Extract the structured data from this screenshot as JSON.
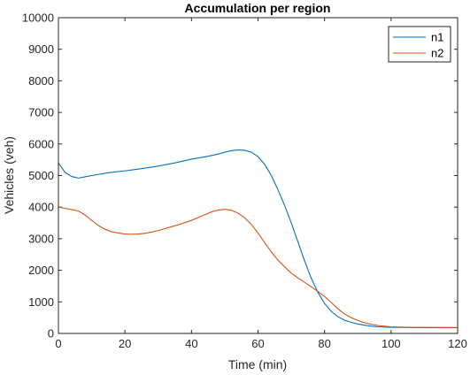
{
  "chart_data": {
    "type": "line",
    "title": "Accumulation per region",
    "xlabel": "Time (min)",
    "ylabel": "Vehicles (veh)",
    "xlim": [
      0,
      120
    ],
    "ylim": [
      0,
      10000
    ],
    "xticks": [
      0,
      20,
      40,
      60,
      80,
      100,
      120
    ],
    "yticks": [
      0,
      1000,
      2000,
      3000,
      4000,
      5000,
      6000,
      7000,
      8000,
      9000,
      10000
    ],
    "grid": false,
    "legend_position": "top-right",
    "series": [
      {
        "name": "n1",
        "color": "#0072BD",
        "points": [
          [
            0,
            5400
          ],
          [
            1,
            5250
          ],
          [
            2,
            5100
          ],
          [
            4,
            4970
          ],
          [
            6,
            4920
          ],
          [
            8,
            4960
          ],
          [
            10,
            5000
          ],
          [
            15,
            5090
          ],
          [
            20,
            5150
          ],
          [
            25,
            5220
          ],
          [
            30,
            5300
          ],
          [
            35,
            5400
          ],
          [
            40,
            5520
          ],
          [
            45,
            5610
          ],
          [
            48,
            5680
          ],
          [
            50,
            5740
          ],
          [
            52,
            5790
          ],
          [
            54,
            5810
          ],
          [
            56,
            5800
          ],
          [
            58,
            5740
          ],
          [
            60,
            5600
          ],
          [
            62,
            5350
          ],
          [
            64,
            5000
          ],
          [
            66,
            4550
          ],
          [
            68,
            4050
          ],
          [
            70,
            3500
          ],
          [
            72,
            2900
          ],
          [
            74,
            2300
          ],
          [
            76,
            1750
          ],
          [
            78,
            1300
          ],
          [
            80,
            950
          ],
          [
            82,
            700
          ],
          [
            84,
            530
          ],
          [
            86,
            420
          ],
          [
            88,
            350
          ],
          [
            90,
            300
          ],
          [
            92,
            260
          ],
          [
            94,
            230
          ],
          [
            96,
            210
          ],
          [
            100,
            195
          ],
          [
            105,
            188
          ],
          [
            110,
            185
          ],
          [
            120,
            182
          ]
        ]
      },
      {
        "name": "n2",
        "color": "#D95319",
        "points": [
          [
            0,
            4000
          ],
          [
            2,
            3960
          ],
          [
            4,
            3920
          ],
          [
            6,
            3880
          ],
          [
            8,
            3750
          ],
          [
            10,
            3580
          ],
          [
            12,
            3420
          ],
          [
            14,
            3300
          ],
          [
            16,
            3220
          ],
          [
            18,
            3180
          ],
          [
            20,
            3150
          ],
          [
            22,
            3140
          ],
          [
            24,
            3150
          ],
          [
            26,
            3170
          ],
          [
            28,
            3210
          ],
          [
            30,
            3260
          ],
          [
            32,
            3320
          ],
          [
            34,
            3380
          ],
          [
            36,
            3440
          ],
          [
            38,
            3510
          ],
          [
            40,
            3580
          ],
          [
            42,
            3670
          ],
          [
            44,
            3760
          ],
          [
            46,
            3850
          ],
          [
            48,
            3910
          ],
          [
            50,
            3930
          ],
          [
            52,
            3900
          ],
          [
            54,
            3810
          ],
          [
            56,
            3660
          ],
          [
            58,
            3450
          ],
          [
            60,
            3180
          ],
          [
            62,
            2880
          ],
          [
            64,
            2580
          ],
          [
            66,
            2320
          ],
          [
            68,
            2110
          ],
          [
            70,
            1910
          ],
          [
            72,
            1760
          ],
          [
            74,
            1620
          ],
          [
            76,
            1480
          ],
          [
            78,
            1330
          ],
          [
            80,
            1170
          ],
          [
            82,
            980
          ],
          [
            84,
            780
          ],
          [
            86,
            620
          ],
          [
            88,
            500
          ],
          [
            90,
            410
          ],
          [
            92,
            340
          ],
          [
            94,
            290
          ],
          [
            96,
            250
          ],
          [
            100,
            210
          ],
          [
            105,
            195
          ],
          [
            110,
            190
          ],
          [
            120,
            185
          ]
        ]
      }
    ]
  }
}
